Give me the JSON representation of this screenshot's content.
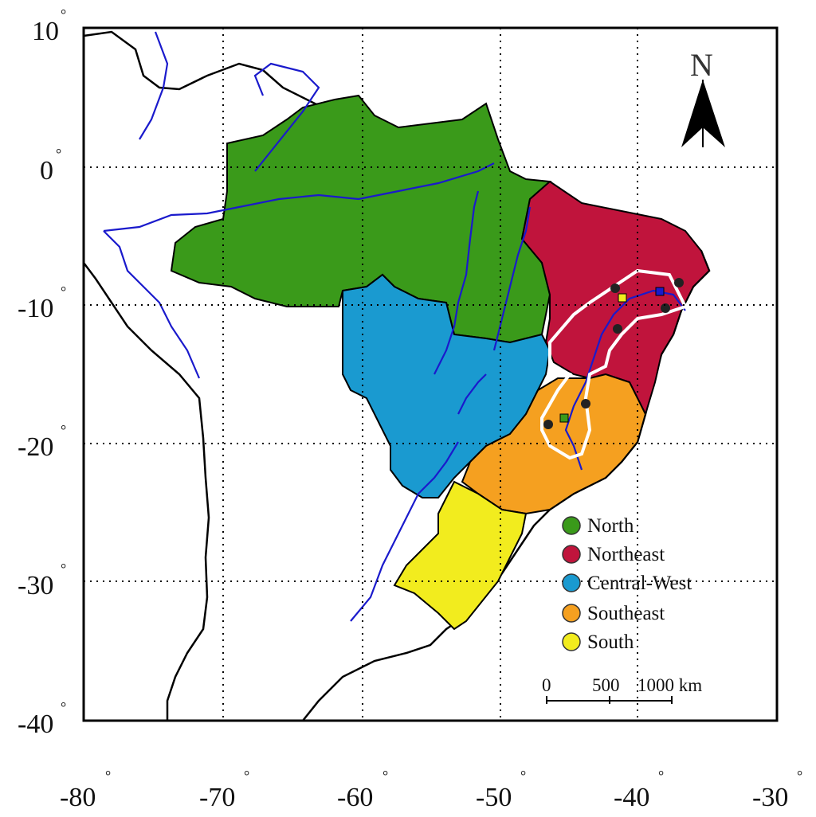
{
  "map": {
    "y_axis": [
      {
        "label": "10",
        "deg": "°"
      },
      {
        "label": "0",
        "deg": "°"
      },
      {
        "label": "-10",
        "deg": "°"
      },
      {
        "label": "-20",
        "deg": "°"
      },
      {
        "label": "-30",
        "deg": "°"
      },
      {
        "label": "-40",
        "deg": "°"
      }
    ],
    "x_axis": [
      {
        "label": "-80",
        "deg": "°"
      },
      {
        "label": "-70",
        "deg": "°"
      },
      {
        "label": "-60",
        "deg": "°"
      },
      {
        "label": "-50",
        "deg": "°"
      },
      {
        "label": "-40",
        "deg": "°"
      },
      {
        "label": "-30",
        "deg": "°"
      }
    ],
    "north_arrow": {
      "label": "N"
    },
    "legend": [
      {
        "label": "North",
        "color": "#3a9a1a"
      },
      {
        "label": "Northeast",
        "color": "#c0143c"
      },
      {
        "label": "Central-West",
        "color": "#1a9ad0"
      },
      {
        "label": "Southeast",
        "color": "#f5a020"
      },
      {
        "label": "South",
        "color": "#f2ec1e"
      }
    ],
    "scale_bar": {
      "label_0": "0",
      "label_500": "500",
      "label_1000": "1000 km"
    },
    "colors": {
      "river": "#1a1acc",
      "border": "#000000",
      "basin_outline": "#ffffff",
      "grid": "#000000"
    }
  }
}
